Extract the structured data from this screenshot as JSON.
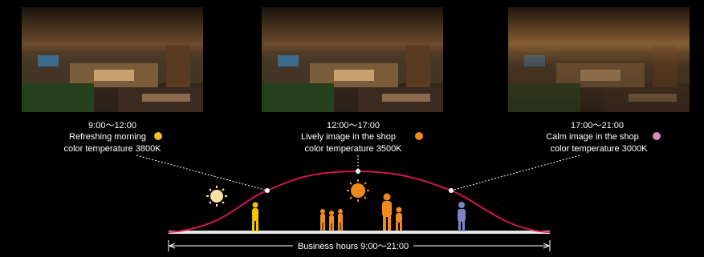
{
  "panels": [
    {
      "time": "9:00〜12:00",
      "description": "Refreshing morning",
      "color_temperature": "color temperature 3800K"
    },
    {
      "time": "12:00〜17:00",
      "description": "Lively image in the shop",
      "color_temperature": "color temperature 3500K"
    },
    {
      "time": "17:00〜21:00",
      "description": "Calm image in the shop",
      "color_temperature": "color temperature 3000K"
    }
  ],
  "business_hours": "Business hours 9:00〜21:00"
}
